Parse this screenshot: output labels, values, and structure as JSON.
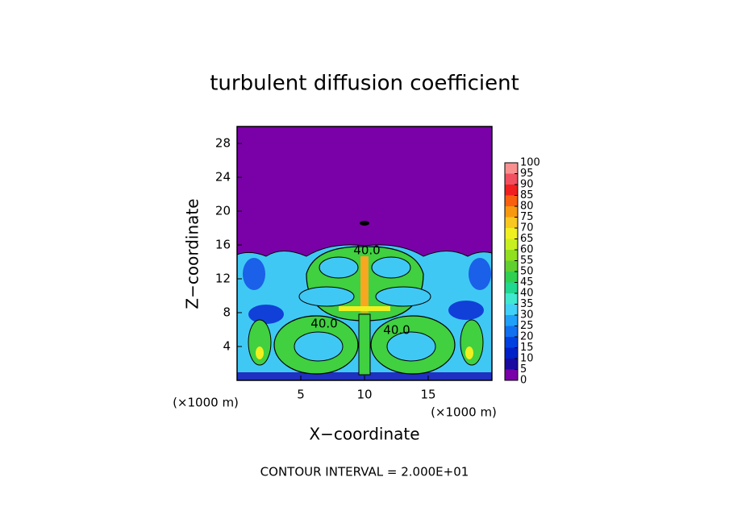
{
  "chart_data": {
    "type": "contour",
    "title": "turbulent diffusion coefficient",
    "x_label": "X−coordinate",
    "y_label": "Z−coordinate",
    "x_unit_label": "(×1000 m)",
    "x_unit_label_right": "(×1000 m)",
    "xlim": [
      0,
      20
    ],
    "ylim": [
      0,
      30
    ],
    "xticks": [
      5,
      10,
      15
    ],
    "yticks": [
      4,
      8,
      12,
      16,
      20,
      24,
      28
    ],
    "contour_labels": [
      "40.0",
      "40.0",
      "40.0"
    ],
    "footnote": "CONTOUR INTERVAL = 2.000E+01",
    "colorbar": {
      "lim": [
        0,
        100
      ],
      "ticks": [
        0,
        5,
        10,
        15,
        20,
        25,
        30,
        35,
        40,
        45,
        50,
        55,
        60,
        65,
        70,
        75,
        80,
        85,
        90,
        95,
        100
      ],
      "colors": [
        "#7a00a8",
        "#1a0aa0",
        "#0020c8",
        "#0040e0",
        "#1070f0",
        "#20a0f8",
        "#40d0f8",
        "#40e8d0",
        "#20d890",
        "#30d050",
        "#60d030",
        "#90e020",
        "#c8f020",
        "#f0f020",
        "#f8c820",
        "#f89810",
        "#f86010",
        "#f02020",
        "#f05060",
        "#f89090"
      ]
    }
  }
}
